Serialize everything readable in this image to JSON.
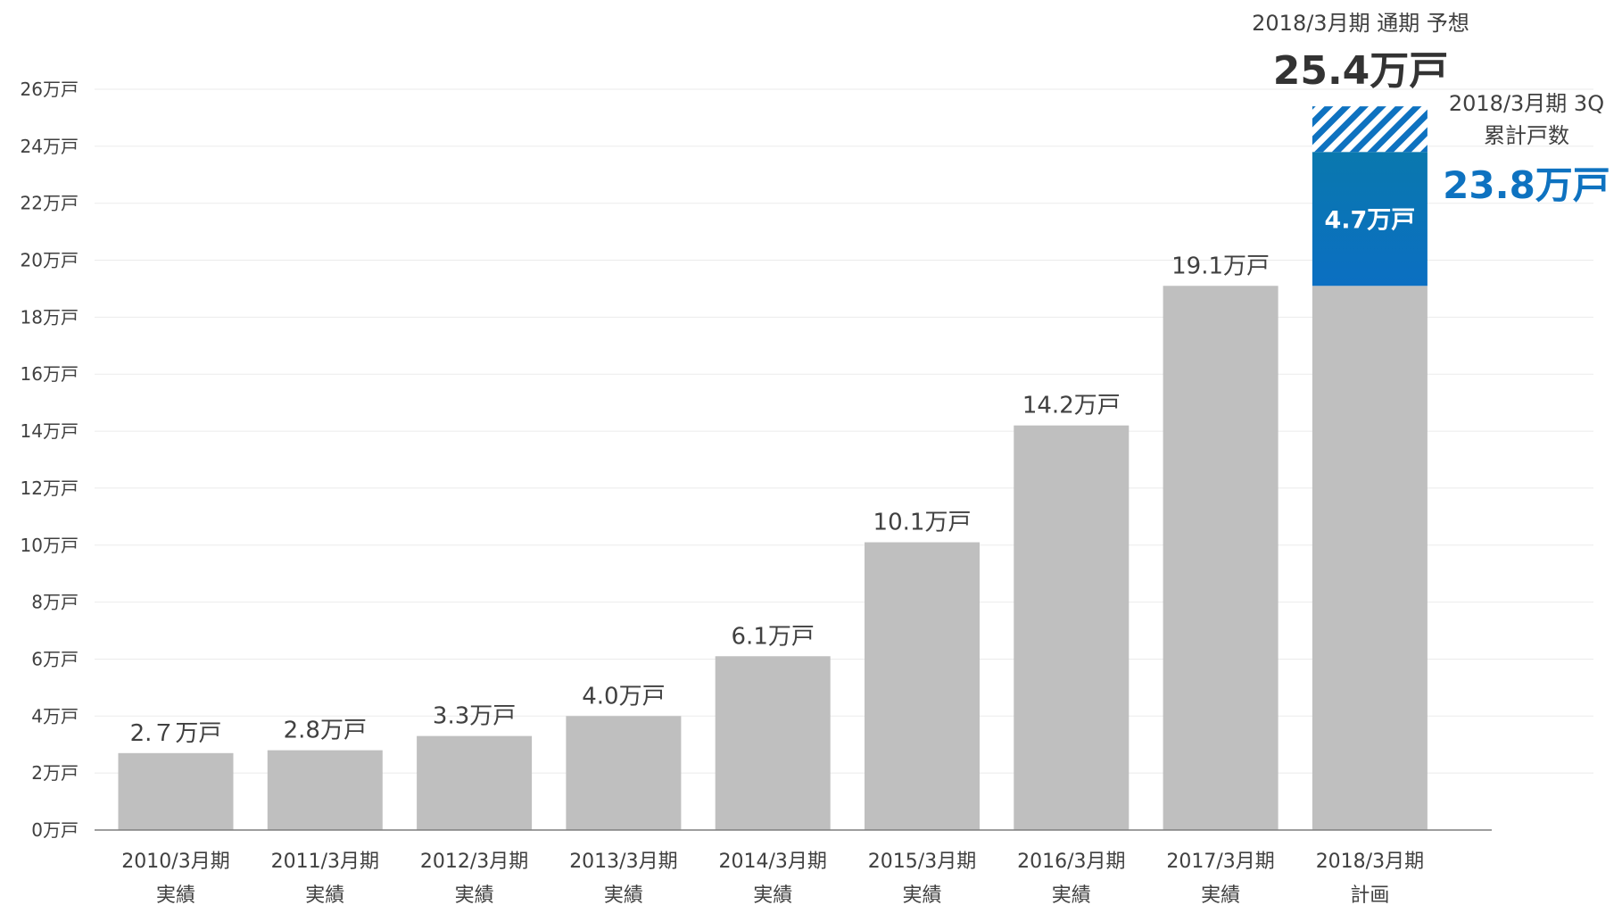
{
  "chart_data": {
    "type": "bar",
    "categories": [
      [
        "2010/3月期",
        "実績"
      ],
      [
        "2011/3月期",
        "実績"
      ],
      [
        "2012/3月期",
        "実績"
      ],
      [
        "2013/3月期",
        "実績"
      ],
      [
        "2014/3月期",
        "実績"
      ],
      [
        "2015/3月期",
        "実績"
      ],
      [
        "2016/3月期",
        "実績"
      ],
      [
        "2017/3月期",
        "実績"
      ],
      [
        "2018/3月期",
        "計画"
      ]
    ],
    "values": [
      2.7,
      2.8,
      3.3,
      4.0,
      6.1,
      10.1,
      14.2,
      19.1,
      19.1
    ],
    "value_labels": [
      "2.７万戸",
      "2.8万戸",
      "3.3万戸",
      "4.0万戸",
      "6.1万戸",
      "10.1万戸",
      "14.2万戸",
      "19.1万戸",
      ""
    ],
    "ylim": [
      0,
      26
    ],
    "yticks": [
      0,
      2,
      4,
      6,
      8,
      10,
      12,
      14,
      16,
      18,
      20,
      22,
      24,
      26
    ],
    "ytick_labels": [
      "0万戸",
      "2万戸",
      "4万戸",
      "6万戸",
      "8万戸",
      "10万戸",
      "12万戸",
      "14万戸",
      "16万戸",
      "18万戸",
      "20万戸",
      "22万戸",
      "24万戸",
      "26万戸"
    ],
    "grid": true,
    "stack_on_last": {
      "actual_increment": 4.7,
      "actual_increment_label": "4.7万戸",
      "cumulative_3q": 23.8,
      "cumulative_3q_label": "23.8万戸",
      "forecast_total": 25.4,
      "forecast_total_label": "25.4万戸"
    },
    "annotations": {
      "forecast_caption": "2018/3月期 通期 予想",
      "cumulative_caption_line1": "2018/3月期 3Q",
      "cumulative_caption_line2": "累計戸数"
    },
    "colors": {
      "bar": "#bfbfbf",
      "increment_top": "#0a78ae",
      "increment_bottom": "#0b6fc2",
      "hatch": "#0e72c0",
      "grid": "#ebebeb",
      "axis": "#7f7f7f"
    }
  }
}
